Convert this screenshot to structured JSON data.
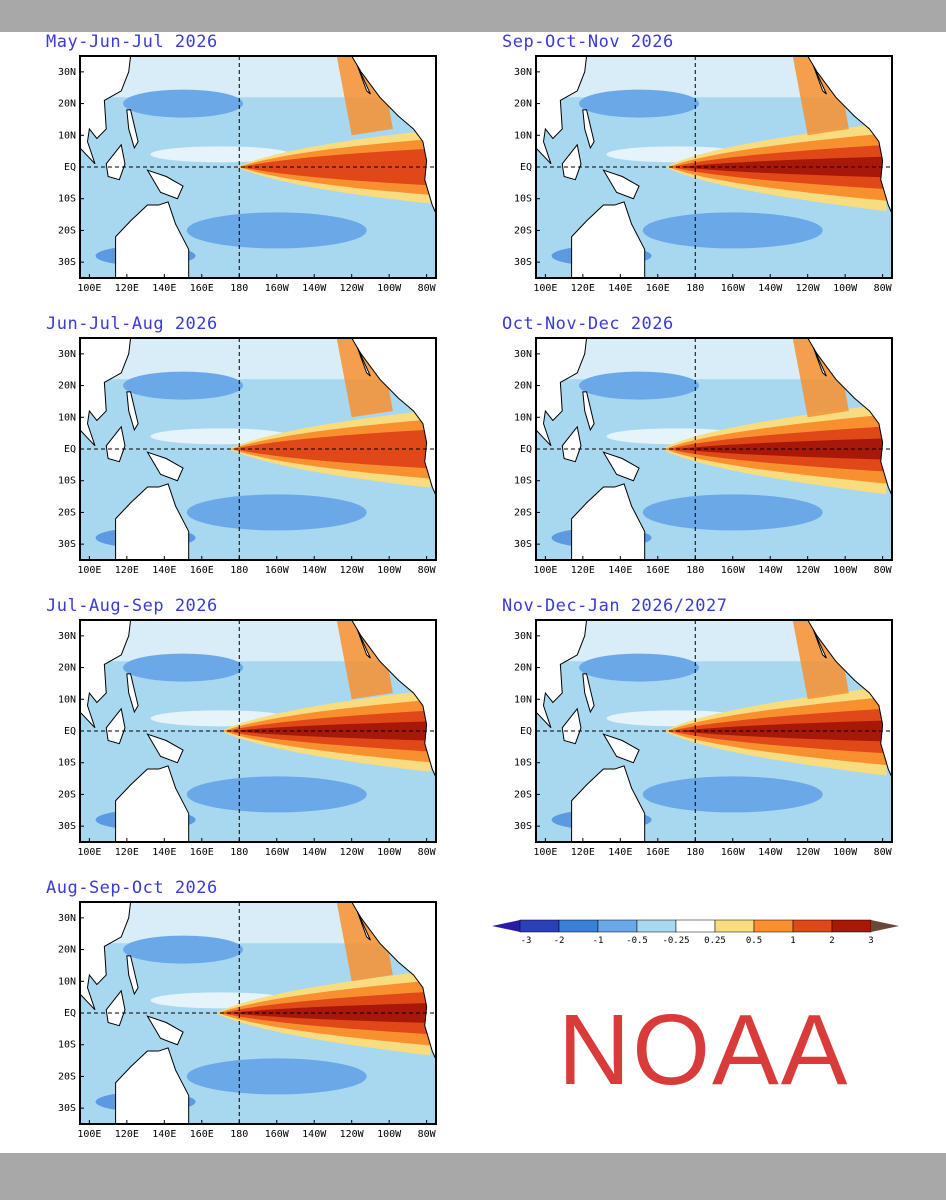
{
  "panels": [
    {
      "title": "May-Jun-Jul 2026",
      "intensity": 0.55
    },
    {
      "title": "Sep-Oct-Nov 2026",
      "intensity": 0.9
    },
    {
      "title": "Jun-Jul-Aug 2026",
      "intensity": 0.65
    },
    {
      "title": "Oct-Nov-Dec 2026",
      "intensity": 0.95
    },
    {
      "title": "Jul-Aug-Sep 2026",
      "intensity": 0.75
    },
    {
      "title": "Nov-Dec-Jan 2026/2027",
      "intensity": 0.92
    },
    {
      "title": "Aug-Sep-Oct 2026",
      "intensity": 0.82
    }
  ],
  "axes": {
    "lat_labels": [
      "30N",
      "20N",
      "10N",
      "EQ",
      "10S",
      "20S",
      "30S"
    ],
    "lon_labels": [
      "100E",
      "120E",
      "140E",
      "160E",
      "180",
      "160W",
      "140W",
      "120W",
      "100W",
      "80W"
    ]
  },
  "colorbar": {
    "labels": [
      "-3",
      "-2",
      "-1",
      "-0.5",
      "-0.25",
      "0.25",
      "0.5",
      "1",
      "2",
      "3"
    ],
    "colors": [
      "#2a3fb8",
      "#3a7fd8",
      "#6aa8e8",
      "#a8d8f0",
      "#ffffff",
      "#f8dc80",
      "#f89030",
      "#e04818",
      "#a81808"
    ],
    "low_color": "#2a1aa8",
    "high_color": "#6a4838"
  },
  "colors": {
    "land": "#ffffff",
    "ocean_neutral": "#ffffff",
    "cool": "#a8d8f0",
    "cool2": "#6aa8e8",
    "warm1": "#f8dc80",
    "warm2": "#f89030",
    "warm3": "#e04818",
    "warm4": "#a81808"
  },
  "brand": {
    "text": "NOAA",
    "color": "#d93a3a"
  }
}
